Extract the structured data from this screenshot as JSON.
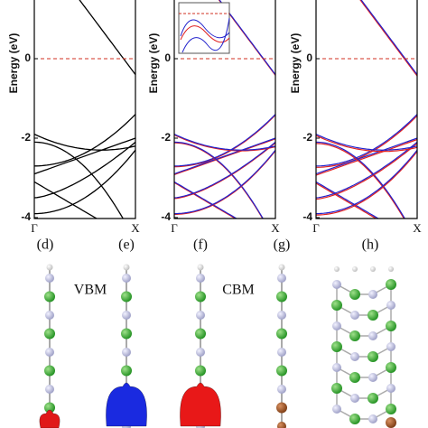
{
  "panels": [
    {
      "y_label": "Energy (eV)",
      "yticks": [
        "0",
        "-2",
        "-4"
      ],
      "kpoints": [
        "Γ",
        "X"
      ]
    },
    {
      "y_label": "Energy (eV)",
      "yticks": [
        "0",
        "-2",
        "-4"
      ],
      "kpoints": [
        "Γ",
        "X"
      ]
    },
    {
      "y_label": "Energy (eV)",
      "yticks": [
        "0",
        "-2",
        "-4"
      ],
      "kpoints": [
        "Γ",
        "X"
      ]
    }
  ],
  "structures": [
    {
      "label": "(d)"
    },
    {
      "label": "(e)"
    },
    {
      "label": "(f)"
    },
    {
      "label": "(g)"
    },
    {
      "label": "(h)"
    }
  ],
  "annotations": [
    "VBM",
    "CBM"
  ]
}
